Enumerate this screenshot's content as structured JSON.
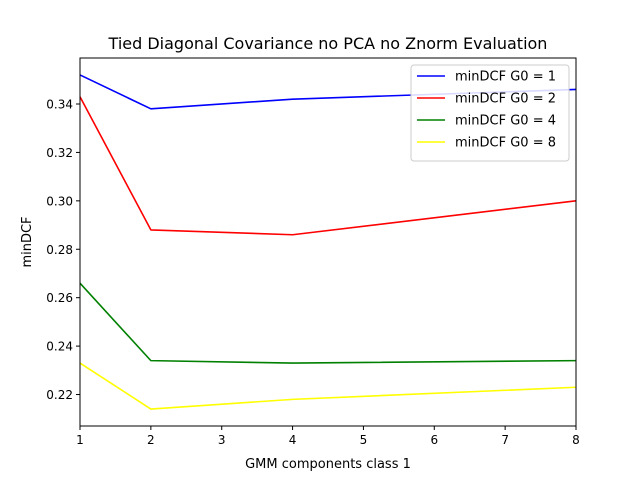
{
  "chart_data": {
    "type": "line",
    "title": "Tied Diagonal Covariance no PCA no Znorm Evaluation",
    "xlabel": "GMM components class 1",
    "ylabel": "minDCF",
    "xlim": [
      1,
      8
    ],
    "ylim": [
      0.207,
      0.359
    ],
    "x_ticks": [
      1,
      2,
      3,
      4,
      5,
      6,
      7,
      8
    ],
    "x_tick_labels": [
      "1",
      "2",
      "3",
      "4",
      "5",
      "6",
      "7",
      "8"
    ],
    "y_ticks": [
      0.22,
      0.24,
      0.26,
      0.28,
      0.3,
      0.32,
      0.34
    ],
    "y_tick_labels": [
      "0.22",
      "0.24",
      "0.26",
      "0.28",
      "0.30",
      "0.32",
      "0.34"
    ],
    "grid": false,
    "legend_position": "top-right",
    "series": [
      {
        "name": "minDCF G0 = 1",
        "color": "#0000ff",
        "x": [
          1,
          2,
          4,
          8
        ],
        "y": [
          0.352,
          0.338,
          0.342,
          0.346
        ]
      },
      {
        "name": "minDCF G0 = 2",
        "color": "#ff0000",
        "x": [
          1,
          2,
          4,
          8
        ],
        "y": [
          0.343,
          0.288,
          0.286,
          0.3
        ]
      },
      {
        "name": "minDCF G0 = 4",
        "color": "#008000",
        "x": [
          1,
          2,
          4,
          8
        ],
        "y": [
          0.266,
          0.234,
          0.233,
          0.234
        ]
      },
      {
        "name": "minDCF G0 = 8",
        "color": "#ffff00",
        "x": [
          1,
          2,
          4,
          8
        ],
        "y": [
          0.233,
          0.214,
          0.218,
          0.223
        ]
      }
    ]
  }
}
